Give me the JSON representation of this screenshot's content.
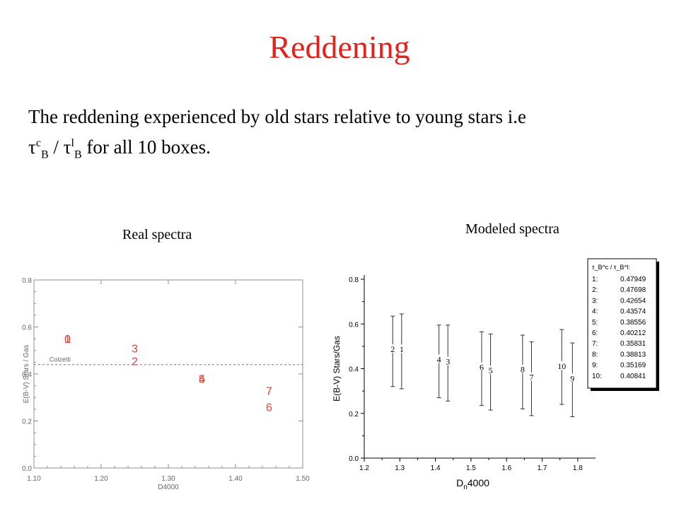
{
  "slide": {
    "title": "Reddening",
    "intro_line1": "The reddening experienced by old stars relative to young stars i.e",
    "tau_symbol": "τ",
    "sup_c": "c",
    "sub_b": "B",
    "slash": " / ",
    "sup_l": "l",
    "intro_tail": " for all 10 boxes.",
    "real_caption": "Real spectra",
    "model_caption": "Modeled spectra"
  },
  "chart_data": [
    {
      "type": "scatter",
      "title": "",
      "xlabel": "D4000",
      "ylabel": "E(B-V) Stars / Gas",
      "xlim": [
        1.1,
        1.5
      ],
      "ylim": [
        0.0,
        0.8
      ],
      "xticks": [
        "1.10",
        "1.20",
        "1.30",
        "1.40",
        "1.50"
      ],
      "yticks": [
        "0.0",
        "0.2",
        "0.4",
        "0.6",
        "0.8"
      ],
      "marker_color": "#e0453a",
      "reference_line": {
        "label": "Colzetti",
        "y": 0.44
      },
      "points": [
        {
          "label": "1",
          "x": 1.15,
          "y": 0.55
        },
        {
          "label": "0",
          "x": 1.15,
          "y": 0.55
        },
        {
          "label": "3",
          "x": 1.25,
          "y": 0.51
        },
        {
          "label": "2",
          "x": 1.25,
          "y": 0.455
        },
        {
          "label": "5",
          "x": 1.35,
          "y": 0.38
        },
        {
          "label": "4",
          "x": 1.35,
          "y": 0.38
        },
        {
          "label": "7",
          "x": 1.45,
          "y": 0.33
        },
        {
          "label": "6",
          "x": 1.45,
          "y": 0.26
        }
      ]
    },
    {
      "type": "scatter",
      "title": "",
      "xlabel_main": "D",
      "xlabel_sub": "n",
      "xlabel_tail": "4000",
      "ylabel": "E(B-V) Stars/Gas",
      "xlim": [
        1.2,
        1.85
      ],
      "ylim": [
        0.0,
        0.8
      ],
      "xticks": [
        "1.2",
        "1.3",
        "1.4",
        "1.5",
        "1.6",
        "1.7",
        "1.8"
      ],
      "yticks": [
        "0.0",
        "0.2",
        "0.4",
        "0.6",
        "0.8"
      ],
      "points": [
        {
          "label": "2",
          "x": 1.28,
          "y": 0.48,
          "low": 0.32,
          "high": 0.635
        },
        {
          "label": "1",
          "x": 1.305,
          "y": 0.48,
          "low": 0.31,
          "high": 0.645
        },
        {
          "label": "4",
          "x": 1.41,
          "y": 0.435,
          "low": 0.27,
          "high": 0.595
        },
        {
          "label": "3",
          "x": 1.435,
          "y": 0.425,
          "low": 0.255,
          "high": 0.595
        },
        {
          "label": "6",
          "x": 1.53,
          "y": 0.4,
          "low": 0.235,
          "high": 0.565
        },
        {
          "label": "5",
          "x": 1.555,
          "y": 0.385,
          "low": 0.215,
          "high": 0.555
        },
        {
          "label": "8",
          "x": 1.645,
          "y": 0.39,
          "low": 0.22,
          "high": 0.55
        },
        {
          "label": "7",
          "x": 1.67,
          "y": 0.355,
          "low": 0.19,
          "high": 0.52
        },
        {
          "label": "10",
          "x": 1.755,
          "y": 0.405,
          "low": 0.24,
          "high": 0.575
        },
        {
          "label": "9",
          "x": 1.785,
          "y": 0.35,
          "low": 0.185,
          "high": 0.515
        }
      ],
      "legend": {
        "header": "τ_B^c / τ_B^l:",
        "entries": [
          {
            "key": "1:",
            "value": "0.47949"
          },
          {
            "key": "2:",
            "value": "0.47698"
          },
          {
            "key": "3:",
            "value": "0.42654"
          },
          {
            "key": "4:",
            "value": "0.43574"
          },
          {
            "key": "5:",
            "value": "0.38556"
          },
          {
            "key": "6:",
            "value": "0.40212"
          },
          {
            "key": "7:",
            "value": "0.35831"
          },
          {
            "key": "8:",
            "value": "0.38813"
          },
          {
            "key": "9:",
            "value": "0.35169"
          },
          {
            "key": "10:",
            "value": "0.40841"
          }
        ]
      }
    }
  ]
}
